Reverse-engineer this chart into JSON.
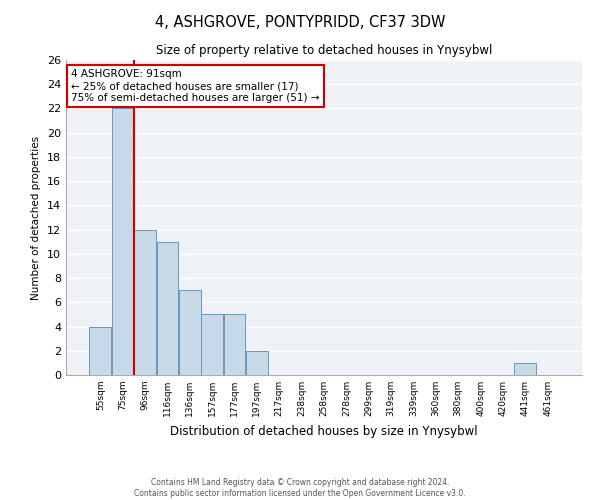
{
  "title": "4, ASHGROVE, PONTYPRIDD, CF37 3DW",
  "subtitle": "Size of property relative to detached houses in Ynysybwl",
  "xlabel": "Distribution of detached houses by size in Ynysybwl",
  "ylabel": "Number of detached properties",
  "bin_labels": [
    "55sqm",
    "75sqm",
    "96sqm",
    "116sqm",
    "136sqm",
    "157sqm",
    "177sqm",
    "197sqm",
    "217sqm",
    "238sqm",
    "258sqm",
    "278sqm",
    "299sqm",
    "319sqm",
    "339sqm",
    "360sqm",
    "380sqm",
    "400sqm",
    "420sqm",
    "441sqm",
    "461sqm"
  ],
  "bar_values": [
    4,
    22,
    12,
    11,
    7,
    5,
    5,
    2,
    0,
    0,
    0,
    0,
    0,
    0,
    0,
    0,
    0,
    0,
    0,
    1,
    0
  ],
  "bar_color": "#c8d9e8",
  "bar_edge_color": "#6699bb",
  "ylim": [
    0,
    26
  ],
  "yticks": [
    0,
    2,
    4,
    6,
    8,
    10,
    12,
    14,
    16,
    18,
    20,
    22,
    24,
    26
  ],
  "vline_x": 1.5,
  "vline_color": "#cc0000",
  "annotation_title": "4 ASHGROVE: 91sqm",
  "annotation_line1": "← 25% of detached houses are smaller (17)",
  "annotation_line2": "75% of semi-detached houses are larger (51) →",
  "annotation_box_color": "#ffffff",
  "annotation_box_edge": "#cc0000",
  "footer1": "Contains HM Land Registry data © Crown copyright and database right 2024.",
  "footer2": "Contains public sector information licensed under the Open Government Licence v3.0.",
  "plot_bg_color": "#eef2f7",
  "grid_color": "#ffffff",
  "fig_bg_color": "#ffffff"
}
